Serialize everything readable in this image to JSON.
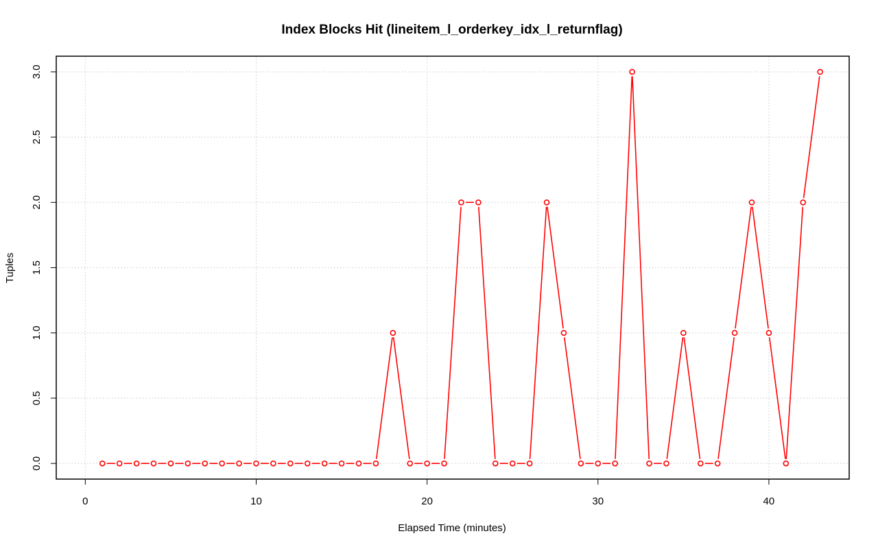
{
  "chart_data": {
    "type": "line",
    "title": "Index Blocks Hit (lineitem_l_orderkey_idx_l_returnflag)",
    "xlabel": "Elapsed Time (minutes)",
    "ylabel": "Tuples",
    "xlim": [
      -1.7,
      44.7
    ],
    "ylim": [
      -0.12,
      3.12
    ],
    "x_ticks": [
      0,
      10,
      20,
      30,
      40
    ],
    "x_tick_labels": [
      "0",
      "10",
      "20",
      "30",
      "40"
    ],
    "y_ticks": [
      0,
      0.5,
      1,
      1.5,
      2,
      2.5,
      3
    ],
    "y_tick_labels": [
      "0.0",
      "0.5",
      "1.0",
      "1.5",
      "2.0",
      "2.5",
      "3.0"
    ],
    "grid": true,
    "series": [
      {
        "color": "#ff0000",
        "marker": "open-circle",
        "x": [
          1,
          2,
          3,
          4,
          5,
          6,
          7,
          8,
          9,
          10,
          11,
          12,
          13,
          14,
          15,
          16,
          17,
          18,
          19,
          20,
          21,
          22,
          23,
          24,
          25,
          26,
          27,
          28,
          29,
          30,
          31,
          32,
          33,
          34,
          35,
          36,
          37,
          38,
          39,
          40,
          41,
          42,
          43
        ],
        "y": [
          0,
          0,
          0,
          0,
          0,
          0,
          0,
          0,
          0,
          0,
          0,
          0,
          0,
          0,
          0,
          0,
          0,
          1,
          0,
          0,
          0,
          2,
          2,
          0,
          0,
          0,
          2,
          1,
          0,
          0,
          0,
          3,
          0,
          0,
          1,
          0,
          0,
          1,
          2,
          1,
          0,
          2,
          3
        ]
      }
    ]
  }
}
